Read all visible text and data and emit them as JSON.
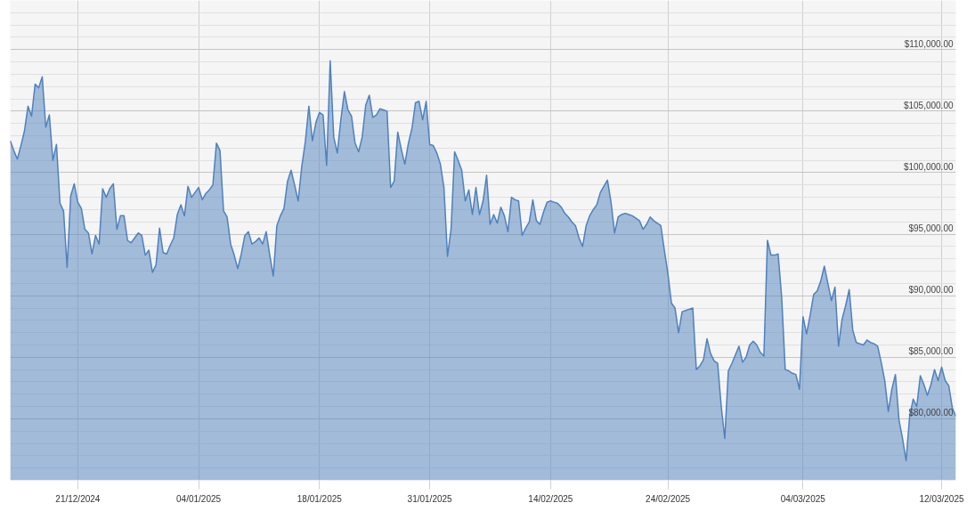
{
  "chart_data": {
    "type": "area",
    "color": "#4f81bd",
    "grid": true,
    "categories": [
      null,
      null,
      null,
      null,
      null,
      null,
      null,
      null,
      null,
      null,
      null,
      null,
      null,
      null,
      null,
      null,
      null,
      null,
      null,
      "21/12/2024",
      null,
      null,
      null,
      null,
      null,
      null,
      null,
      null,
      null,
      null,
      null,
      null,
      null,
      null,
      null,
      null,
      null,
      null,
      null,
      null,
      null,
      null,
      null,
      null,
      null,
      null,
      null,
      null,
      null,
      null,
      null,
      null,
      null,
      "04/01/2025",
      null,
      null,
      null,
      null,
      null,
      null,
      null,
      null,
      null,
      null,
      null,
      null,
      null,
      null,
      null,
      null,
      null,
      null,
      null,
      null,
      null,
      null,
      null,
      null,
      null,
      null,
      null,
      null,
      null,
      null,
      null,
      null,
      null,
      "18/01/2025",
      null,
      null,
      null,
      null,
      null,
      null,
      null,
      null,
      null,
      null,
      null,
      null,
      null,
      null,
      null,
      null,
      null,
      null,
      null,
      null,
      null,
      null,
      null,
      null,
      null,
      null,
      null,
      null,
      null,
      null,
      "31/01/2025",
      null,
      null,
      null,
      null,
      null,
      null,
      null,
      null,
      null,
      null,
      null,
      null,
      null,
      null,
      null,
      null,
      null,
      null,
      null,
      null,
      null,
      null,
      null,
      null,
      null,
      null,
      null,
      null,
      null,
      null,
      null,
      null,
      null,
      "14/02/2025",
      null,
      null,
      null,
      null,
      null,
      null,
      null,
      null,
      null,
      null,
      null,
      null,
      null,
      null,
      null,
      null,
      null,
      null,
      null,
      null,
      null,
      null,
      null,
      null,
      null,
      null,
      null,
      null,
      null,
      null,
      null,
      null,
      "24/02/2025",
      null,
      null,
      null,
      null,
      null,
      null,
      null,
      null,
      null,
      null,
      null,
      null,
      null,
      null,
      null,
      null,
      null,
      null,
      null,
      null,
      null,
      null,
      null,
      null,
      null,
      null,
      null,
      null,
      null,
      null,
      null,
      null,
      null,
      null,
      null,
      null,
      null,
      "04/03/2025",
      null,
      null,
      null,
      null,
      null,
      null,
      null,
      null,
      null,
      null,
      null,
      null,
      null,
      null,
      null,
      null,
      null,
      null,
      null,
      null,
      null,
      null,
      null,
      null,
      null,
      null,
      null,
      null,
      null,
      null,
      null,
      null,
      null,
      null,
      null,
      null,
      null,
      null,
      "12/03/2025",
      null,
      null,
      null,
      null
    ],
    "values": [
      102600,
      101800,
      101100,
      102200,
      103400,
      105400,
      104600,
      107200,
      106900,
      107800,
      103700,
      104700,
      101000,
      102300,
      97500,
      96900,
      92300,
      98100,
      99100,
      97600,
      97100,
      95400,
      95100,
      93400,
      94900,
      94200,
      98700,
      98000,
      98700,
      99100,
      95400,
      96500,
      96500,
      94500,
      94300,
      94700,
      95100,
      94900,
      93300,
      93700,
      91900,
      92500,
      95500,
      93500,
      93400,
      94100,
      94700,
      96600,
      97400,
      96500,
      98900,
      98000,
      98400,
      98800,
      97800,
      98300,
      98600,
      99000,
      102400,
      101800,
      96900,
      96400,
      94200,
      93300,
      92200,
      93400,
      94900,
      95200,
      94200,
      94400,
      94700,
      94200,
      95200,
      93300,
      91600,
      95700,
      96500,
      97100,
      99300,
      100200,
      99000,
      97700,
      100500,
      102500,
      105400,
      102600,
      104100,
      104900,
      104700,
      100600,
      109100,
      102900,
      101600,
      104300,
      106600,
      105100,
      104600,
      102400,
      101700,
      102900,
      105500,
      106300,
      104500,
      104700,
      105200,
      105100,
      105000,
      98800,
      99300,
      103300,
      101900,
      100700,
      102400,
      103600,
      105700,
      105800,
      104300,
      105800,
      102300,
      102200,
      101600,
      100700,
      98800,
      93200,
      95400,
      101700,
      101000,
      100200,
      97700,
      98600,
      96600,
      98800,
      96600,
      97700,
      99800,
      95800,
      96600,
      95900,
      97200,
      96500,
      95200,
      98000,
      97800,
      97700,
      94900,
      95500,
      96000,
      97800,
      96100,
      95800,
      96800,
      97600,
      97700,
      97600,
      97500,
      97200,
      96700,
      96400,
      96000,
      95700,
      94700,
      94000,
      95700,
      96500,
      97000,
      97400,
      98400,
      98900,
      99400,
      97600,
      95100,
      96400,
      96600,
      96700,
      96600,
      96500,
      96300,
      96100,
      95400,
      95800,
      96400,
      96100,
      95900,
      95700,
      93700,
      91800,
      89400,
      89000,
      87000,
      88700,
      88800,
      88900,
      89000,
      84000,
      84300,
      84800,
      86500,
      85300,
      84700,
      84500,
      81000,
      78400,
      83900,
      84500,
      85200,
      85900,
      84600,
      85000,
      86000,
      86300,
      86000,
      85400,
      85100,
      94500,
      93300,
      93300,
      93400,
      89900,
      84000,
      83900,
      83700,
      83600,
      82400,
      88300,
      86900,
      88400,
      90100,
      90400,
      91200,
      92400,
      91000,
      89600,
      90700,
      85900,
      88100,
      89200,
      90500,
      87200,
      86200,
      86100,
      86000,
      86400,
      86200,
      86100,
      85900,
      84600,
      83100,
      80600,
      82400,
      83600,
      79900,
      78400,
      76600,
      80200,
      81600,
      81000,
      83500,
      82800,
      81900,
      82800,
      84000,
      83100,
      84200,
      83100,
      82700,
      80900,
      80200
    ],
    "ylim": [
      75000,
      114000
    ],
    "yticks": [
      {
        "value": 76000,
        "label": null
      },
      {
        "value": 77000,
        "label": null
      },
      {
        "value": 78000,
        "label": null
      },
      {
        "value": 79000,
        "label": null
      },
      {
        "value": 80000,
        "label": "$80,000.00"
      },
      {
        "value": 81000,
        "label": null
      },
      {
        "value": 82000,
        "label": null
      },
      {
        "value": 83000,
        "label": null
      },
      {
        "value": 84000,
        "label": null
      },
      {
        "value": 85000,
        "label": "$85,000.00"
      },
      {
        "value": 86000,
        "label": null
      },
      {
        "value": 87000,
        "label": null
      },
      {
        "value": 88000,
        "label": null
      },
      {
        "value": 89000,
        "label": null
      },
      {
        "value": 90000,
        "label": "$90,000.00"
      },
      {
        "value": 91000,
        "label": null
      },
      {
        "value": 92000,
        "label": null
      },
      {
        "value": 93000,
        "label": null
      },
      {
        "value": 94000,
        "label": null
      },
      {
        "value": 95000,
        "label": "$95,000.00"
      },
      {
        "value": 96000,
        "label": null
      },
      {
        "value": 97000,
        "label": null
      },
      {
        "value": 98000,
        "label": null
      },
      {
        "value": 99000,
        "label": null
      },
      {
        "value": 100000,
        "label": "$100,000.00"
      },
      {
        "value": 101000,
        "label": null
      },
      {
        "value": 102000,
        "label": null
      },
      {
        "value": 103000,
        "label": null
      },
      {
        "value": 104000,
        "label": null
      },
      {
        "value": 105000,
        "label": "$105,000.00"
      },
      {
        "value": 106000,
        "label": null
      },
      {
        "value": 107000,
        "label": null
      },
      {
        "value": 108000,
        "label": null
      },
      {
        "value": 109000,
        "label": null
      },
      {
        "value": 110000,
        "label": "$110,000.00"
      },
      {
        "value": 111000,
        "label": null
      },
      {
        "value": 112000,
        "label": null
      },
      {
        "value": 113000,
        "label": null
      }
    ]
  }
}
